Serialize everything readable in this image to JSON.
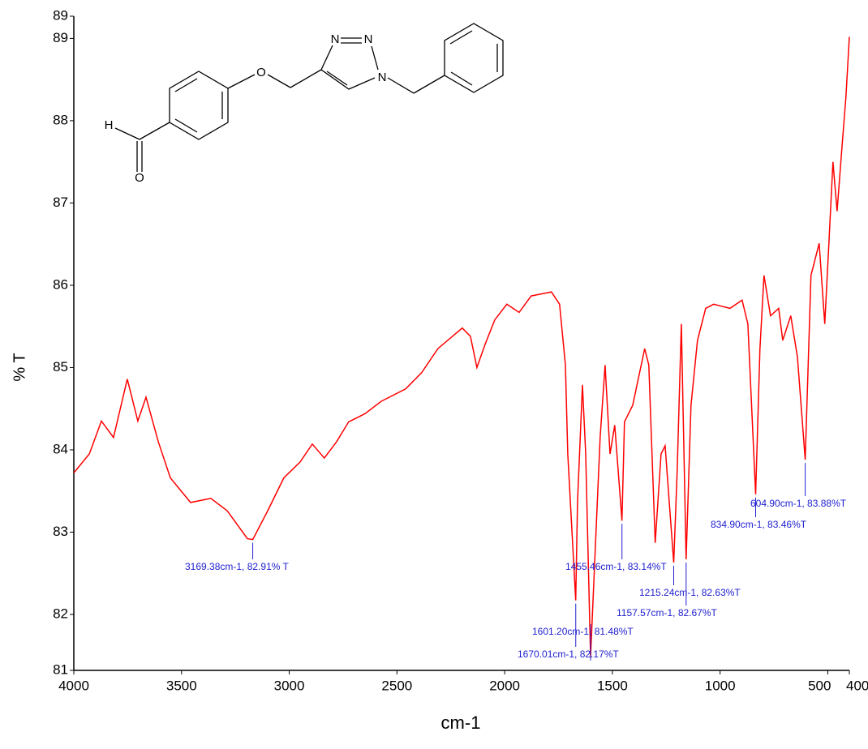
{
  "chart_data": {
    "type": "line",
    "xlabel": "cm-1",
    "ylabel": "% T",
    "xlim": [
      4000,
      400
    ],
    "ylim": [
      81.32,
      89.27
    ],
    "xticks": [
      4000,
      3500,
      3000,
      2500,
      2000,
      1500,
      1000,
      {
        "value": 500,
        "label": "500"
      },
      {
        "value": 400,
        "label": "400"
      }
    ],
    "yticks": [
      {
        "value": 81.32,
        "label": "81"
      },
      82,
      83,
      84,
      85,
      86,
      87,
      88,
      89,
      {
        "value": 89.27,
        "label": "89"
      }
    ],
    "series": [
      {
        "color": "#ff0000",
        "x": [
          4000,
          3928,
          3872,
          3816,
          3752,
          3703,
          3665,
          3608,
          3552,
          3458,
          3364,
          3288,
          3194,
          3169.38,
          3100,
          3025,
          2950,
          2893,
          2837,
          2780,
          2724,
          2648,
          2573,
          2460,
          2385,
          2310,
          2197,
          2159,
          2129,
          2091,
          2046,
          1990,
          1933,
          1877,
          1783,
          1745,
          1718,
          1707,
          1670.01,
          1662,
          1639,
          1624,
          1601.2,
          1583,
          1557,
          1534,
          1511,
          1489,
          1455.46,
          1444,
          1406,
          1350,
          1331,
          1301,
          1274,
          1255,
          1215.24,
          1199,
          1180,
          1157.57,
          1135,
          1105,
          1067,
          1030,
          954,
          898,
          871,
          834.9,
          815,
          796,
          766,
          728,
          709,
          672,
          641,
          604.9,
          578,
          540,
          514,
          495,
          476,
          457,
          434,
          416,
          400
        ],
        "values": [
          83.72,
          83.95,
          84.35,
          84.15,
          84.86,
          84.35,
          84.64,
          84.1,
          83.66,
          83.36,
          83.41,
          83.26,
          82.92,
          82.91,
          83.26,
          83.66,
          83.85,
          84.07,
          83.9,
          84.1,
          84.34,
          84.44,
          84.59,
          84.74,
          84.94,
          85.23,
          85.48,
          85.38,
          85.0,
          85.28,
          85.58,
          85.77,
          85.67,
          85.87,
          85.92,
          85.77,
          85.03,
          83.95,
          82.17,
          83.36,
          84.79,
          83.95,
          81.48,
          82.57,
          84.15,
          85.03,
          83.95,
          84.3,
          83.14,
          84.34,
          84.54,
          85.23,
          85.03,
          82.87,
          83.95,
          84.05,
          82.63,
          83.75,
          85.53,
          82.67,
          84.54,
          85.33,
          85.72,
          85.77,
          85.72,
          85.82,
          85.53,
          83.46,
          85.23,
          86.12,
          85.63,
          85.72,
          85.33,
          85.63,
          85.13,
          83.88,
          86.12,
          86.51,
          85.53,
          86.51,
          87.5,
          86.9,
          87.69,
          88.29,
          89.02
        ]
      }
    ],
    "annotations": [
      {
        "x": 3169.38,
        "y": 82.91,
        "text": "3169.38cm-1, 82.91% T"
      },
      {
        "x": 1455.46,
        "y": 83.14,
        "text": "1455.46cm-1, 83.14%T"
      },
      {
        "x": 1215.24,
        "y": 82.63,
        "text": "1215.24cm-1, 82.63%T"
      },
      {
        "x": 1157.57,
        "y": 82.67,
        "text": "1157.57cm-1, 82.67%T"
      },
      {
        "x": 1601.2,
        "y": 81.48,
        "text": "1601.20cm-1, 81.48%T"
      },
      {
        "x": 1670.01,
        "y": 82.17,
        "text": "1670.01cm-1, 82.17%T"
      },
      {
        "x": 834.9,
        "y": 83.46,
        "text": "834.90cm-1, 83.46%T"
      },
      {
        "x": 604.9,
        "y": 83.88,
        "text": "604.90cm-1, 83.88%T"
      }
    ]
  },
  "structure_labels": [
    "H",
    "O",
    "O",
    "N",
    "N",
    "N"
  ]
}
